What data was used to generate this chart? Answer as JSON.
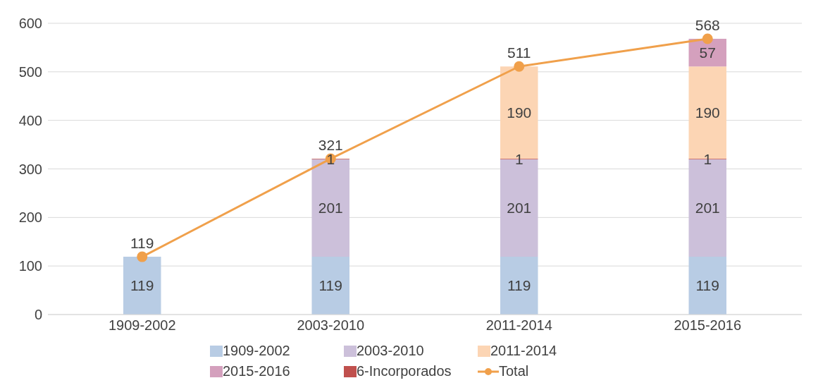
{
  "chart_data": {
    "type": "bar",
    "stacked": true,
    "categories": [
      "1909-2002",
      "2003-2010",
      "2011-2014",
      "2015-2016"
    ],
    "series": [
      {
        "name": "1909-2002",
        "color": "#b8cce4",
        "values": [
          119,
          119,
          119,
          119
        ]
      },
      {
        "name": "2003-2010",
        "color": "#ccc0da",
        "values": [
          null,
          201,
          201,
          201
        ]
      },
      {
        "name": "6-Incorporados",
        "color": "#c0504d",
        "values": [
          null,
          1,
          1,
          1
        ]
      },
      {
        "name": "2011-2014",
        "color": "#fcd5b4",
        "values": [
          null,
          null,
          190,
          190
        ]
      },
      {
        "name": "2015-2016",
        "color": "#d4a0bd",
        "values": [
          null,
          null,
          null,
          57
        ]
      },
      {
        "name": "Total",
        "type": "line",
        "color": "#f0a04b",
        "values": [
          119,
          321,
          511,
          568
        ]
      }
    ],
    "ylim": [
      0,
      600
    ],
    "yticks": [
      0,
      100,
      200,
      300,
      400,
      500,
      600
    ],
    "grid": "y",
    "legend": "bottom",
    "data_labels": true,
    "marker": "circle"
  }
}
